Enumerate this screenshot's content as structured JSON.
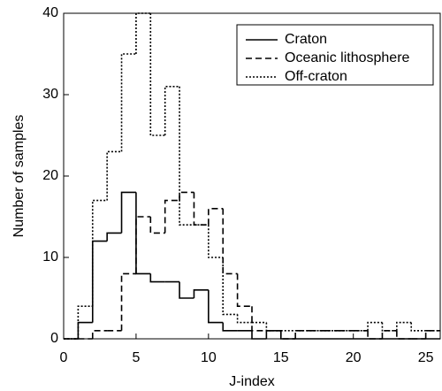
{
  "chart_data": {
    "type": "histogram",
    "xlabel": "J-index",
    "ylabel": "Number of samples",
    "bins": [
      0,
      1,
      2,
      3,
      4,
      5,
      6,
      7,
      8,
      9,
      10,
      11,
      12,
      13,
      14,
      15,
      16,
      17,
      18,
      19,
      20,
      21,
      22,
      23,
      24,
      25,
      26
    ],
    "xlim": [
      0,
      26
    ],
    "xticks": [
      0,
      5,
      10,
      15,
      20,
      25
    ],
    "ylim": [
      0,
      40
    ],
    "yticks": [
      0,
      10,
      20,
      30,
      40
    ],
    "legend": "upper right",
    "series": [
      {
        "name": "Craton",
        "color": "#000000",
        "line_style": "solid",
        "values": [
          0,
          2,
          12,
          13,
          18,
          8,
          7,
          7,
          5,
          6,
          2,
          1,
          1,
          0,
          1,
          0,
          0,
          0,
          0,
          0,
          0,
          0,
          0,
          0,
          0,
          0
        ]
      },
      {
        "name": "Oceanic lithosphere",
        "color": "#000000",
        "line_style": "dashed",
        "values": [
          0,
          0,
          1,
          1,
          8,
          15,
          13,
          17,
          18,
          14,
          16,
          8,
          4,
          1,
          1,
          0,
          1,
          1,
          1,
          1,
          1,
          0,
          1,
          0,
          0,
          1
        ]
      },
      {
        "name": "Off-craton",
        "color": "#000000",
        "line_style": "dotted",
        "values": [
          0,
          4,
          17,
          23,
          35,
          40,
          25,
          31,
          14,
          14,
          10,
          3,
          2,
          2,
          1,
          1,
          1,
          1,
          1,
          1,
          1,
          2,
          1,
          2,
          1,
          1
        ]
      }
    ]
  }
}
